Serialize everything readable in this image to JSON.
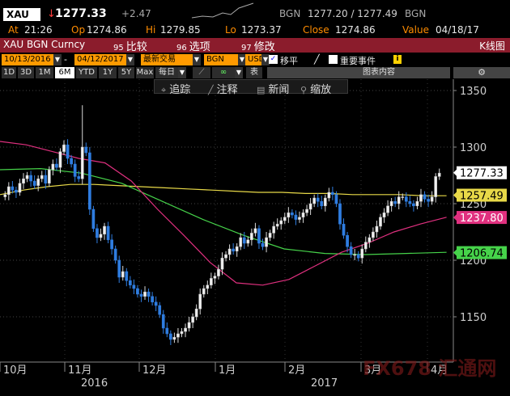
{
  "quote": {
    "symbol": "XAU",
    "last": "1277.33",
    "change": "+2.47",
    "source": "BGN",
    "bid_ask": "1277.20 / 1277.49",
    "source2": "BGN"
  },
  "stats": {
    "time_label": "At",
    "time": "21:26",
    "open_label": "Op",
    "open": "1274.86",
    "high_label": "Hi",
    "high": "1279.85",
    "low_label": "Lo",
    "low": "1273.37",
    "close_label": "Close",
    "close": "1274.86",
    "value_label": "Value",
    "value": "04/18/17"
  },
  "titlebar": {
    "security": "XAU BGN Curncy",
    "compare_num": "95",
    "compare": "比较",
    "options_num": "96",
    "options": "选项",
    "edit_num": "97",
    "edit": "修改",
    "kline": "K线图"
  },
  "settings": {
    "start_date": "10/13/2016",
    "end_date": "04/12/2017",
    "recent_trade": "最新交易",
    "source": "BGN",
    "currency": "USD",
    "shift_label": "移平",
    "events_label": "重要事件",
    "info": "i"
  },
  "ranges": [
    "1D",
    "3D",
    "1M",
    "6M",
    "YTD",
    "1Y",
    "5Y",
    "Max"
  ],
  "active_range": "6M",
  "period": "每日",
  "line_label": "表",
  "chart_content_label": "图表内容",
  "toolbar": {
    "track": "追踪",
    "annotate": "注释",
    "news": "新闻",
    "zoom": "缩放"
  },
  "watermark": "FX678 汇通网",
  "chart_data": {
    "type": "candlestick",
    "x_labels": [
      "10月",
      "11月",
      "12月",
      "1月",
      "2月",
      "3月",
      "4月"
    ],
    "year_labels": [
      "2016",
      "2017"
    ],
    "yticks": [
      1150,
      1200,
      1250,
      1300,
      1350
    ],
    "ylim": [
      1110,
      1360
    ],
    "grid": "horizontal dotted",
    "candles": [
      1258,
      1265,
      1262,
      1260,
      1268,
      1272,
      1275,
      1270,
      1266,
      1272,
      1275,
      1268,
      1280,
      1285,
      1282,
      1296,
      1302,
      1290,
      1285,
      1274,
      1272,
      1300,
      1295,
      1245,
      1228,
      1220,
      1223,
      1230,
      1218,
      1210,
      1200,
      1185,
      1190,
      1182,
      1178,
      1175,
      1170,
      1168,
      1172,
      1168,
      1163,
      1160,
      1152,
      1140,
      1135,
      1130,
      1132,
      1135,
      1137,
      1140,
      1145,
      1150,
      1157,
      1170,
      1175,
      1178,
      1184,
      1186,
      1192,
      1202,
      1205,
      1210,
      1208,
      1212,
      1220,
      1215,
      1218,
      1224,
      1228,
      1215,
      1212,
      1220,
      1224,
      1230,
      1232,
      1235,
      1238,
      1242,
      1240,
      1236,
      1238,
      1242,
      1245,
      1250,
      1255,
      1252,
      1248,
      1255,
      1260,
      1258,
      1250,
      1232,
      1222,
      1212,
      1205,
      1205,
      1202,
      1210,
      1216,
      1220,
      1225,
      1230,
      1238,
      1242,
      1248,
      1252,
      1250,
      1256,
      1256,
      1252,
      1250,
      1248,
      1252,
      1258,
      1254,
      1252,
      1256,
      1274,
      1277
    ],
    "series": [
      {
        "name": "",
        "value": 1277.33,
        "color": "#e8e8e8"
      },
      {
        "name": "",
        "value": 1257.49,
        "color": "#e8d948"
      },
      {
        "name": "",
        "value": 1237.8,
        "color": "#e0307f"
      },
      {
        "name": "",
        "value": 1206.74,
        "color": "#46d34a"
      }
    ],
    "ma_yellow": [
      1258,
      1262,
      1265,
      1267,
      1267,
      1266,
      1265,
      1264,
      1263,
      1262,
      1261,
      1260,
      1260,
      1259,
      1259,
      1258,
      1258,
      1258,
      1257,
      1257
    ],
    "ma_green": [
      1280,
      1281,
      1277,
      1268,
      1252,
      1236,
      1222,
      1210,
      1206,
      1205,
      1206,
      1207
    ],
    "ma_pink": [
      1305,
      1302,
      1296,
      1290,
      1286,
      1270,
      1245,
      1222,
      1198,
      1180,
      1178,
      1183,
      1195,
      1207,
      1215,
      1225,
      1232,
      1238
    ]
  }
}
